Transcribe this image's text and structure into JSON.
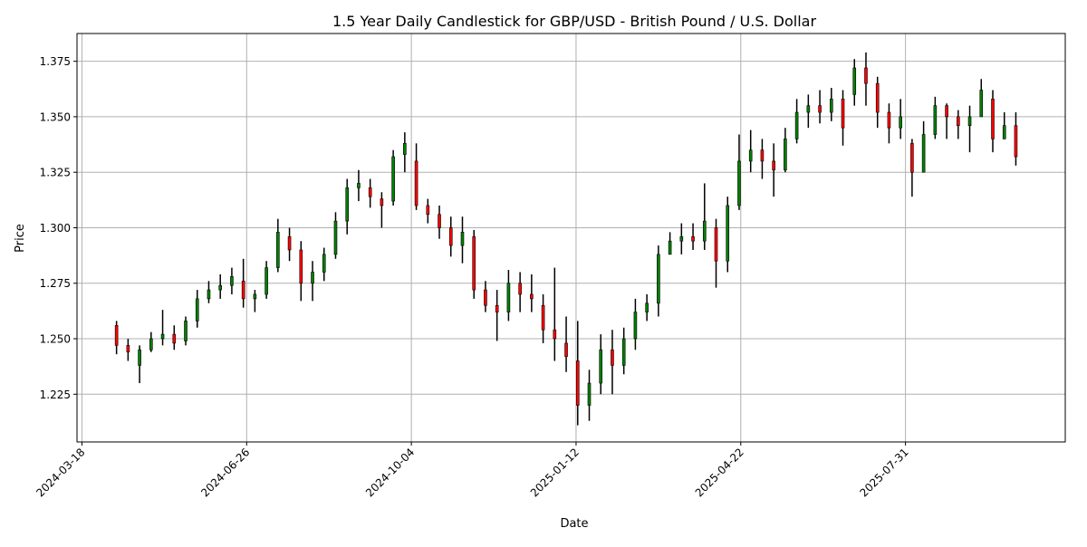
{
  "chart_data": {
    "type": "candlestick",
    "title": "1.5 Year Daily Candlestick for GBP/USD - British Pound / U.S. Dollar",
    "xlabel": "Date",
    "ylabel": "Price",
    "grid": true,
    "ylim": [
      1.2035,
      1.3875
    ],
    "xlim": [
      "2024-03-15",
      "2025-11-05"
    ],
    "yticks": [
      "1.225",
      "1.250",
      "1.275",
      "1.300",
      "1.325",
      "1.350",
      "1.375"
    ],
    "xticks": [
      "2024-03-18",
      "2024-06-26",
      "2024-10-04",
      "2025-01-12",
      "2025-04-22",
      "2025-07-31"
    ],
    "colors": {
      "wick": "#000000",
      "up": "#008000",
      "down": "#ff0000",
      "grid": "#b0b0b0"
    },
    "candles": [
      [
        "2024-04-08",
        1.256,
        1.258,
        1.243,
        1.247
      ],
      [
        "2024-04-15",
        1.247,
        1.25,
        1.24,
        1.244
      ],
      [
        "2024-04-22",
        1.238,
        1.247,
        1.23,
        1.245
      ],
      [
        "2024-04-29",
        1.245,
        1.253,
        1.244,
        1.25
      ],
      [
        "2024-05-06",
        1.25,
        1.263,
        1.247,
        1.252
      ],
      [
        "2024-05-13",
        1.252,
        1.256,
        1.245,
        1.248
      ],
      [
        "2024-05-20",
        1.249,
        1.26,
        1.247,
        1.258
      ],
      [
        "2024-05-27",
        1.258,
        1.272,
        1.255,
        1.268
      ],
      [
        "2024-06-03",
        1.268,
        1.276,
        1.266,
        1.272
      ],
      [
        "2024-06-10",
        1.272,
        1.279,
        1.268,
        1.274
      ],
      [
        "2024-06-17",
        1.274,
        1.282,
        1.27,
        1.278
      ],
      [
        "2024-06-24",
        1.276,
        1.286,
        1.264,
        1.268
      ],
      [
        "2024-07-01",
        1.268,
        1.272,
        1.262,
        1.27
      ],
      [
        "2024-07-08",
        1.27,
        1.285,
        1.268,
        1.282
      ],
      [
        "2024-07-15",
        1.282,
        1.304,
        1.28,
        1.298
      ],
      [
        "2024-07-22",
        1.296,
        1.3,
        1.285,
        1.29
      ],
      [
        "2024-07-29",
        1.29,
        1.294,
        1.267,
        1.275
      ],
      [
        "2024-08-05",
        1.275,
        1.285,
        1.267,
        1.28
      ],
      [
        "2024-08-12",
        1.28,
        1.291,
        1.276,
        1.288
      ],
      [
        "2024-08-19",
        1.288,
        1.307,
        1.286,
        1.303
      ],
      [
        "2024-08-26",
        1.303,
        1.322,
        1.297,
        1.318
      ],
      [
        "2024-09-02",
        1.318,
        1.326,
        1.312,
        1.32
      ],
      [
        "2024-09-09",
        1.318,
        1.322,
        1.309,
        1.314
      ],
      [
        "2024-09-16",
        1.313,
        1.316,
        1.3,
        1.31
      ],
      [
        "2024-09-23",
        1.312,
        1.335,
        1.31,
        1.332
      ],
      [
        "2024-09-30",
        1.333,
        1.343,
        1.325,
        1.338
      ],
      [
        "2024-10-07",
        1.33,
        1.338,
        1.308,
        1.31
      ],
      [
        "2024-10-14",
        1.31,
        1.313,
        1.302,
        1.306
      ],
      [
        "2024-10-21",
        1.306,
        1.31,
        1.295,
        1.3
      ],
      [
        "2024-10-28",
        1.3,
        1.305,
        1.287,
        1.292
      ],
      [
        "2024-11-04",
        1.292,
        1.305,
        1.284,
        1.298
      ],
      [
        "2024-11-11",
        1.296,
        1.299,
        1.268,
        1.272
      ],
      [
        "2024-11-18",
        1.272,
        1.276,
        1.262,
        1.265
      ],
      [
        "2024-11-25",
        1.265,
        1.272,
        1.249,
        1.262
      ],
      [
        "2024-12-02",
        1.262,
        1.281,
        1.258,
        1.275
      ],
      [
        "2024-12-09",
        1.275,
        1.28,
        1.262,
        1.27
      ],
      [
        "2024-12-16",
        1.27,
        1.279,
        1.262,
        1.268
      ],
      [
        "2024-12-23",
        1.265,
        1.27,
        1.248,
        1.254
      ],
      [
        "2024-12-30",
        1.254,
        1.282,
        1.24,
        1.25
      ],
      [
        "2025-01-06",
        1.248,
        1.26,
        1.235,
        1.242
      ],
      [
        "2025-01-13",
        1.24,
        1.258,
        1.211,
        1.22
      ],
      [
        "2025-01-20",
        1.22,
        1.236,
        1.213,
        1.23
      ],
      [
        "2025-01-27",
        1.23,
        1.252,
        1.225,
        1.245
      ],
      [
        "2025-02-03",
        1.245,
        1.254,
        1.225,
        1.238
      ],
      [
        "2025-02-10",
        1.238,
        1.255,
        1.234,
        1.25
      ],
      [
        "2025-02-17",
        1.25,
        1.268,
        1.245,
        1.262
      ],
      [
        "2025-02-24",
        1.262,
        1.27,
        1.258,
        1.266
      ],
      [
        "2025-03-03",
        1.266,
        1.292,
        1.26,
        1.288
      ],
      [
        "2025-03-10",
        1.288,
        1.298,
        1.288,
        1.294
      ],
      [
        "2025-03-17",
        1.294,
        1.302,
        1.288,
        1.296
      ],
      [
        "2025-03-24",
        1.296,
        1.302,
        1.29,
        1.294
      ],
      [
        "2025-03-31",
        1.294,
        1.32,
        1.29,
        1.303
      ],
      [
        "2025-04-07",
        1.3,
        1.304,
        1.273,
        1.285
      ],
      [
        "2025-04-14",
        1.285,
        1.314,
        1.28,
        1.31
      ],
      [
        "2025-04-21",
        1.31,
        1.342,
        1.308,
        1.33
      ],
      [
        "2025-04-28",
        1.33,
        1.344,
        1.325,
        1.335
      ],
      [
        "2025-05-05",
        1.335,
        1.34,
        1.322,
        1.33
      ],
      [
        "2025-05-12",
        1.33,
        1.338,
        1.314,
        1.326
      ],
      [
        "2025-05-19",
        1.326,
        1.345,
        1.325,
        1.34
      ],
      [
        "2025-05-26",
        1.34,
        1.358,
        1.338,
        1.352
      ],
      [
        "2025-06-02",
        1.352,
        1.36,
        1.345,
        1.355
      ],
      [
        "2025-06-09",
        1.355,
        1.362,
        1.347,
        1.352
      ],
      [
        "2025-06-16",
        1.352,
        1.363,
        1.348,
        1.358
      ],
      [
        "2025-06-23",
        1.358,
        1.362,
        1.337,
        1.345
      ],
      [
        "2025-06-30",
        1.36,
        1.376,
        1.355,
        1.372
      ],
      [
        "2025-07-07",
        1.372,
        1.379,
        1.355,
        1.365
      ],
      [
        "2025-07-14",
        1.365,
        1.368,
        1.345,
        1.352
      ],
      [
        "2025-07-21",
        1.352,
        1.356,
        1.338,
        1.345
      ],
      [
        "2025-07-28",
        1.345,
        1.358,
        1.34,
        1.35
      ],
      [
        "2025-08-04",
        1.338,
        1.34,
        1.314,
        1.325
      ],
      [
        "2025-08-11",
        1.325,
        1.348,
        1.325,
        1.342
      ],
      [
        "2025-08-18",
        1.342,
        1.359,
        1.34,
        1.355
      ],
      [
        "2025-08-25",
        1.355,
        1.356,
        1.34,
        1.35
      ],
      [
        "2025-09-01",
        1.35,
        1.353,
        1.34,
        1.346
      ],
      [
        "2025-09-08",
        1.346,
        1.355,
        1.334,
        1.35
      ],
      [
        "2025-09-15",
        1.35,
        1.367,
        1.35,
        1.362
      ],
      [
        "2025-09-22",
        1.358,
        1.362,
        1.334,
        1.34
      ],
      [
        "2025-09-29",
        1.34,
        1.352,
        1.34,
        1.346
      ],
      [
        "2025-10-06",
        1.346,
        1.352,
        1.328,
        1.332
      ]
    ]
  }
}
